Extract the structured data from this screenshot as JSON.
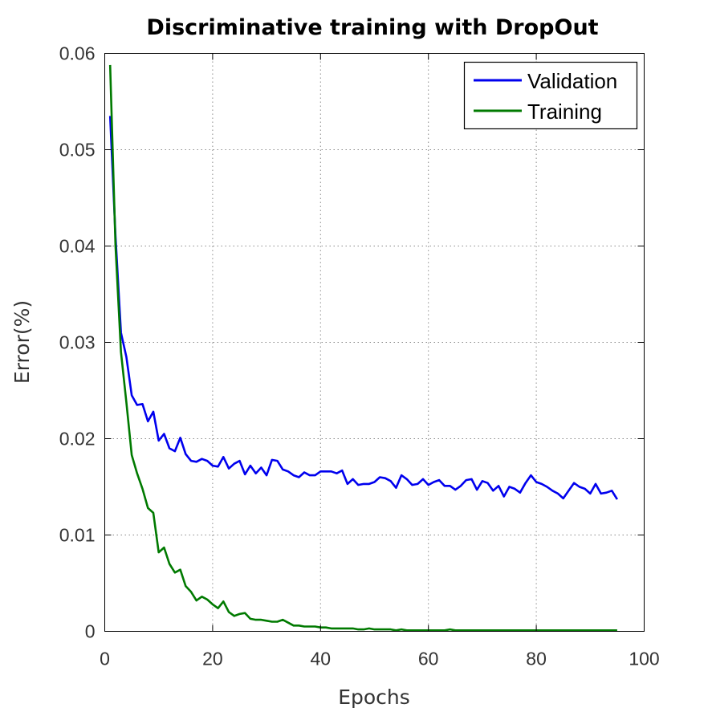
{
  "chart_data": {
    "type": "line",
    "title": "Discriminative training with DropOut",
    "xlabel": "Epochs",
    "ylabel": "Error(%)",
    "xlim": [
      0,
      100
    ],
    "ylim": [
      0,
      0.06
    ],
    "xticks": [
      0,
      20,
      40,
      60,
      80,
      100
    ],
    "xtick_labels": [
      "0",
      "20",
      "40",
      "60",
      "80",
      "100"
    ],
    "yticks": [
      0,
      0.01,
      0.02,
      0.03,
      0.04,
      0.05,
      0.06
    ],
    "ytick_labels": [
      "0",
      "0.01",
      "0.02",
      "0.03",
      "0.04",
      "0.05",
      "0.06"
    ],
    "grid": true,
    "legend_position": "top-right",
    "series": [
      {
        "name": "Validation",
        "color": "#0000ee",
        "x": [
          1,
          2,
          3,
          4,
          5,
          6,
          7,
          8,
          9,
          10,
          11,
          12,
          13,
          14,
          15,
          16,
          17,
          18,
          19,
          20,
          21,
          22,
          23,
          24,
          25,
          26,
          27,
          28,
          29,
          30,
          31,
          32,
          33,
          34,
          35,
          36,
          37,
          38,
          39,
          40,
          41,
          42,
          43,
          44,
          45,
          46,
          47,
          48,
          49,
          50,
          51,
          52,
          53,
          54,
          55,
          56,
          57,
          58,
          59,
          60,
          61,
          62,
          63,
          64,
          65,
          66,
          67,
          68,
          69,
          70,
          71,
          72,
          73,
          74,
          75,
          76,
          77,
          78,
          79,
          80,
          81,
          82,
          83,
          84,
          85,
          86,
          87,
          88,
          89,
          90,
          91,
          92,
          93,
          94,
          95
        ],
        "values": [
          0.0535,
          0.041,
          0.031,
          0.0285,
          0.0245,
          0.0235,
          0.0236,
          0.0218,
          0.0228,
          0.0198,
          0.0205,
          0.019,
          0.0187,
          0.0201,
          0.0184,
          0.0177,
          0.0176,
          0.0179,
          0.0177,
          0.0172,
          0.0171,
          0.0181,
          0.0169,
          0.0174,
          0.0177,
          0.0163,
          0.0172,
          0.0164,
          0.017,
          0.0162,
          0.0178,
          0.0177,
          0.0168,
          0.0166,
          0.0162,
          0.016,
          0.0165,
          0.0162,
          0.0162,
          0.0166,
          0.0166,
          0.0166,
          0.0164,
          0.0167,
          0.0153,
          0.0158,
          0.0152,
          0.0153,
          0.0153,
          0.0155,
          0.016,
          0.0159,
          0.0156,
          0.0149,
          0.0162,
          0.0158,
          0.0152,
          0.0153,
          0.0158,
          0.0152,
          0.0155,
          0.0157,
          0.0151,
          0.0151,
          0.0147,
          0.0151,
          0.0157,
          0.0158,
          0.0147,
          0.0156,
          0.0154,
          0.0146,
          0.0151,
          0.014,
          0.015,
          0.0148,
          0.0144,
          0.0154,
          0.0162,
          0.0155,
          0.0153,
          0.015,
          0.0146,
          0.0143,
          0.0138,
          0.0146,
          0.0154,
          0.015,
          0.0148,
          0.0143,
          0.0153,
          0.0143,
          0.0144,
          0.0146,
          0.0137
        ]
      },
      {
        "name": "Training",
        "color": "#007a00",
        "x": [
          1,
          2,
          3,
          4,
          5,
          6,
          7,
          8,
          9,
          10,
          11,
          12,
          13,
          14,
          15,
          16,
          17,
          18,
          19,
          20,
          21,
          22,
          23,
          24,
          25,
          26,
          27,
          28,
          29,
          30,
          31,
          32,
          33,
          34,
          35,
          36,
          37,
          38,
          39,
          40,
          41,
          42,
          43,
          44,
          45,
          46,
          47,
          48,
          49,
          50,
          51,
          52,
          53,
          54,
          55,
          56,
          57,
          58,
          59,
          60,
          61,
          62,
          63,
          64,
          65,
          66,
          67,
          68,
          69,
          70,
          71,
          72,
          73,
          74,
          75,
          76,
          77,
          78,
          79,
          80,
          81,
          82,
          83,
          84,
          85,
          86,
          87,
          88,
          89,
          90,
          91,
          92,
          93,
          94,
          95
        ],
        "values": [
          0.0588,
          0.04,
          0.029,
          0.0238,
          0.0183,
          0.0164,
          0.0148,
          0.0128,
          0.0123,
          0.0082,
          0.0087,
          0.007,
          0.0061,
          0.0064,
          0.0047,
          0.0041,
          0.0032,
          0.0036,
          0.0033,
          0.0028,
          0.0024,
          0.0031,
          0.002,
          0.0016,
          0.0018,
          0.0019,
          0.0013,
          0.0012,
          0.0012,
          0.0011,
          0.001,
          0.001,
          0.0012,
          0.0009,
          0.0006,
          0.0006,
          0.0005,
          0.0005,
          0.0005,
          0.0004,
          0.0004,
          0.0003,
          0.0003,
          0.0003,
          0.0003,
          0.0003,
          0.0002,
          0.0002,
          0.0003,
          0.0002,
          0.0002,
          0.0002,
          0.0002,
          0.0001,
          0.0002,
          0.0001,
          0.0001,
          0.0001,
          0.0001,
          0.0001,
          0.0001,
          0.0001,
          0.0001,
          0.0002,
          0.0001,
          0.0001,
          0.0001,
          0.0001,
          0.0001,
          0.0001,
          0.0001,
          0.0001,
          0.0001,
          0.0001,
          0.0001,
          0.0001,
          0.0001,
          0.0001,
          0.0001,
          0.0001,
          0.0001,
          0.0001,
          0.0001,
          0.0001,
          0.0001,
          0.0001,
          0.0001,
          0.0001,
          0.0001,
          0.0001,
          0.0001,
          0.0001,
          0.0001,
          0.0001,
          0.0001
        ]
      }
    ]
  }
}
